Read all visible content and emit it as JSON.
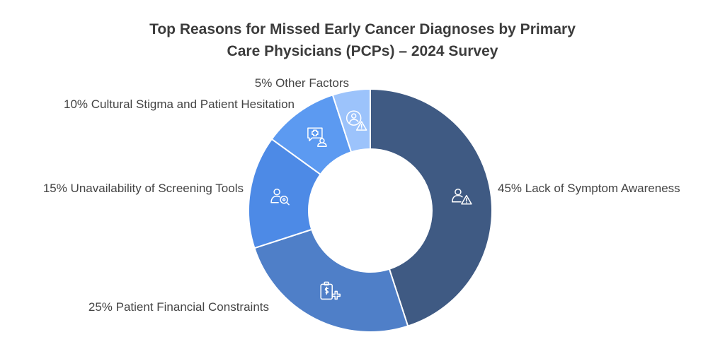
{
  "title": {
    "line1": "Top Reasons for Missed Early Cancer Diagnoses by Primary",
    "line2": "Care Physicians (PCPs) – 2024 Survey"
  },
  "chart_data": {
    "type": "pie",
    "donut": true,
    "title": "Top Reasons for Missed Early Cancer Diagnoses by Primary Care Physicians (PCPs) – 2024 Survey",
    "unit": "%",
    "slices": [
      {
        "label": "Lack of Symptom Awareness",
        "value": 45,
        "display": "45% Lack of Symptom Awareness",
        "color": "#3f5a83",
        "icon": "person-warning-icon"
      },
      {
        "label": "Patient Financial Constraints",
        "value": 25,
        "display": "25% Patient Financial Constraints",
        "color": "#4f7fc8",
        "icon": "clipboard-dollar-medical-icon"
      },
      {
        "label": "Unavailability of Screening Tools",
        "value": 15,
        "display": "15% Unavailability of Screening Tools",
        "color": "#4d8ae6",
        "icon": "person-search-icon"
      },
      {
        "label": "Cultural Stigma and Patient Hesitation",
        "value": 10,
        "display": "10% Cultural Stigma and Patient Hesitation",
        "color": "#5c9af1",
        "icon": "chat-medical-person-icon"
      },
      {
        "label": "Other Factors",
        "value": 5,
        "display": "5% Other Factors",
        "color": "#9cc3fb",
        "icon": "person-circle-warning-icon"
      }
    ]
  }
}
